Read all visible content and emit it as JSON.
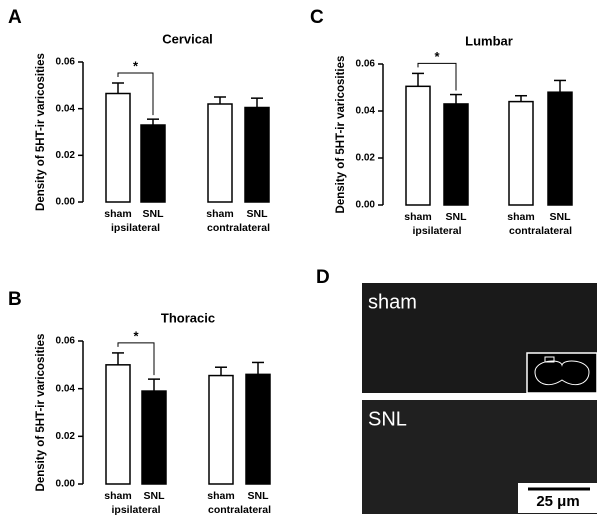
{
  "chart_data": [
    {
      "type": "bar",
      "panel": "A",
      "title": "Cervical",
      "ylabel": "Density of 5HT-ir varicosities",
      "categories": [
        "sham",
        "SNL",
        "sham",
        "SNL"
      ],
      "groups": [
        "ipsilateral",
        "contralateral"
      ],
      "values": [
        0.0465,
        0.033,
        0.042,
        0.0405
      ],
      "errors": [
        0.0045,
        0.0025,
        0.003,
        0.004
      ],
      "colors": [
        "#ffffff",
        "#000000",
        "#ffffff",
        "#000000"
      ],
      "annotation": "*",
      "ylim": [
        0,
        0.06
      ],
      "yticks": [
        {
          "value": 0,
          "label": "0.00"
        },
        0.02,
        0.04,
        0.06
      ]
    },
    {
      "type": "bar",
      "panel": "B",
      "title": "Thoracic",
      "ylabel": "Density of 5HT-ir varicosities",
      "categories": [
        "sham",
        "SNL",
        "sham",
        "SNL"
      ],
      "groups": [
        "ipsilateral",
        "contralateral"
      ],
      "values": [
        0.05,
        0.039,
        0.0455,
        0.046
      ],
      "errors": [
        0.005,
        0.005,
        0.0035,
        0.005
      ],
      "colors": [
        "#ffffff",
        "#000000",
        "#ffffff",
        "#000000"
      ],
      "annotation": "*",
      "ylim": [
        0,
        0.06
      ],
      "yticks": [
        {
          "value": 0,
          "label": "0.00"
        },
        0.02,
        0.04,
        0.06
      ]
    },
    {
      "type": "bar",
      "panel": "C",
      "title": "Lumbar",
      "ylabel": "Density of 5HT-ir varicosities",
      "categories": [
        "sham",
        "SNL",
        "sham",
        "SNL"
      ],
      "groups": [
        "ipsilateral",
        "contralateral"
      ],
      "values": [
        0.0505,
        0.043,
        0.044,
        0.048
      ],
      "errors": [
        0.0055,
        0.004,
        0.0025,
        0.005
      ],
      "colors": [
        "#ffffff",
        "#000000",
        "#ffffff",
        "#000000"
      ],
      "annotation": "*",
      "ylim": [
        0,
        0.06
      ],
      "yticks": [
        {
          "value": 0,
          "label": "0.00"
        },
        0.02,
        0.04,
        0.06
      ]
    }
  ],
  "panel_d": {
    "panel": "D",
    "top_label": "sham",
    "bottom_label": "SNL",
    "scale_label": "25 μm"
  }
}
